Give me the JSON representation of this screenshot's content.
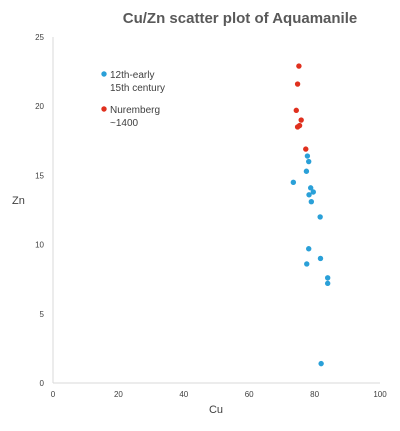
{
  "chart_data": {
    "type": "scatter",
    "title": "Cu/Zn scatter plot of Aquamanile",
    "xlabel": "Cu",
    "ylabel": "Zn",
    "xlim": [
      0,
      100
    ],
    "ylim": [
      0,
      25
    ],
    "xticks": [
      "0",
      "20",
      "40",
      "60",
      "80",
      "100"
    ],
    "yticks": [
      "0",
      "5",
      "10",
      "15",
      "20",
      "25"
    ],
    "grid": false,
    "legend_position": "top-left",
    "series": [
      {
        "name": "12th-early 15th century",
        "name_lines": [
          "12th-early",
          "15th century"
        ],
        "color": "#2aa0d8",
        "points": [
          [
            77.8,
            16.4
          ],
          [
            78.2,
            16.0
          ],
          [
            77.5,
            15.3
          ],
          [
            73.5,
            14.5
          ],
          [
            78.8,
            14.1
          ],
          [
            79.6,
            13.8
          ],
          [
            78.3,
            13.6
          ],
          [
            79.0,
            13.1
          ],
          [
            81.7,
            12.0
          ],
          [
            78.2,
            9.7
          ],
          [
            81.8,
            9.0
          ],
          [
            77.6,
            8.6
          ],
          [
            84.0,
            7.6
          ],
          [
            84.0,
            7.2
          ],
          [
            82.0,
            1.4
          ]
        ]
      },
      {
        "name": "Nuremberg ~1400",
        "name_lines": [
          "Nuremberg",
          "~1400"
        ],
        "color": "#e0301e",
        "points": [
          [
            75.2,
            22.9
          ],
          [
            74.8,
            21.6
          ],
          [
            74.4,
            19.7
          ],
          [
            75.9,
            19.0
          ],
          [
            75.4,
            18.6
          ],
          [
            74.8,
            18.5
          ],
          [
            77.3,
            16.9
          ]
        ]
      }
    ]
  }
}
